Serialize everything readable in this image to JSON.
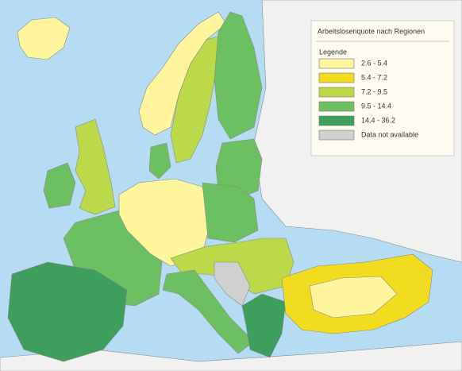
{
  "legend": {
    "title": "Arbeitslosenquote nach Regionen",
    "heading": "Legende",
    "items": [
      {
        "label": "2.6 - 5.4",
        "color": "#fff59d"
      },
      {
        "label": "5.4 - 7.2",
        "color": "#f2dc1f"
      },
      {
        "label": "7.2 - 9.5",
        "color": "#bcd94a"
      },
      {
        "label": "9.5 - 14.4",
        "color": "#6cc062"
      },
      {
        "label": "14.4 - 36.2",
        "color": "#3d9e5e"
      },
      {
        "label": "Data not available",
        "color": "#d0d0d0"
      }
    ]
  }
}
